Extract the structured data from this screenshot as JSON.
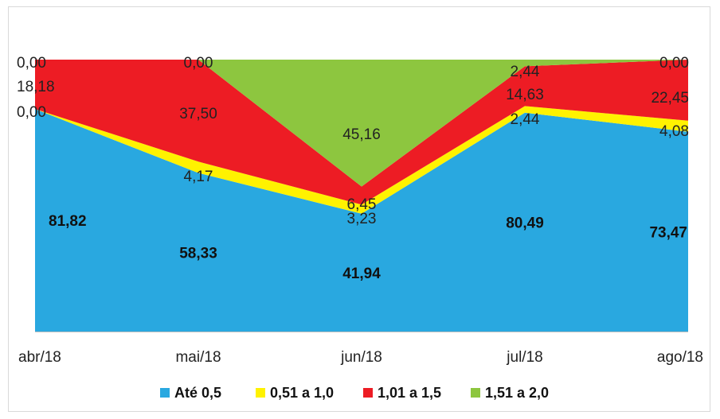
{
  "chart_data": {
    "type": "area",
    "stacked": true,
    "percent_stacked": true,
    "categories": [
      "abr/18",
      "mai/18",
      "jun/18",
      "jul/18",
      "ago/18"
    ],
    "series": [
      {
        "name": "Até 0,5",
        "color": "#29A8E0",
        "values": [
          81.82,
          58.33,
          41.94,
          80.49,
          73.47
        ],
        "labels": [
          "81,82",
          "58,33",
          "41,94",
          "80,49",
          "73,47"
        ],
        "label_bold": true
      },
      {
        "name": "0,51 a 1,0",
        "color": "#FFF200",
        "values": [
          0.0,
          4.17,
          3.23,
          2.44,
          4.08
        ],
        "labels": [
          "0,00",
          "4,17",
          "3,23",
          "2,44",
          "4,08"
        ],
        "label_bold": false
      },
      {
        "name": "1,01 a 1,5",
        "color": "#ED1C24",
        "values": [
          18.18,
          37.5,
          6.45,
          14.63,
          22.45
        ],
        "labels": [
          "18,18",
          "37,50",
          "6,45",
          "14,63",
          "22,45"
        ],
        "label_bold": false
      },
      {
        "name": "1,51 a 2,0",
        "color": "#8DC63F",
        "values": [
          0.0,
          0.0,
          45.16,
          2.44,
          0.0
        ],
        "labels": [
          "0,00",
          "0,00",
          "45,16",
          "2,44",
          "0,00"
        ],
        "label_bold": false
      }
    ],
    "ylim": [
      0,
      100
    ],
    "grid": false,
    "legend": "bottom"
  }
}
